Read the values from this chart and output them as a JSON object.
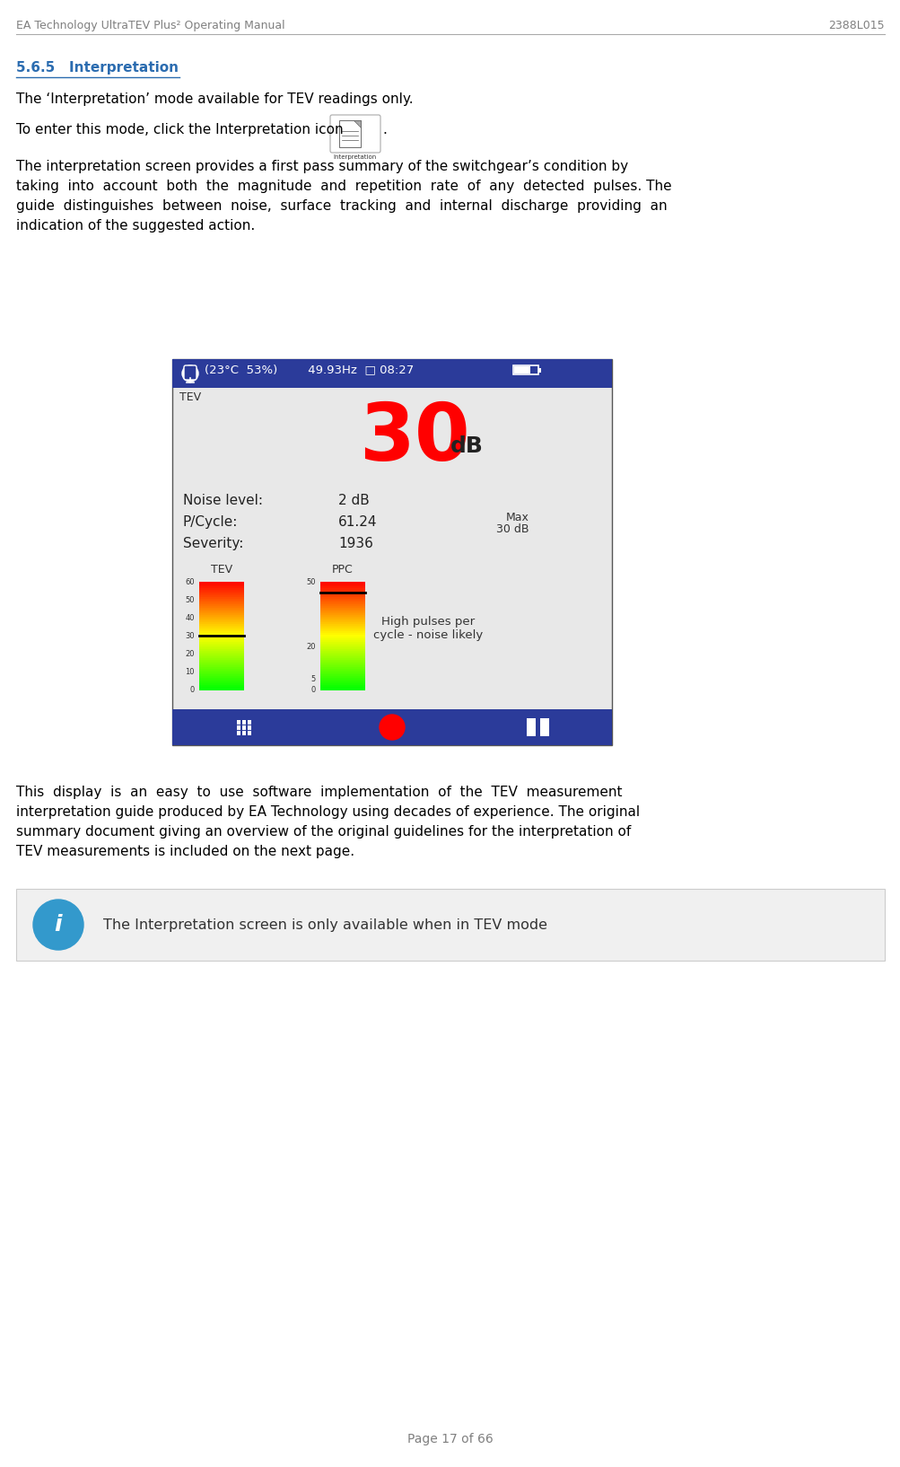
{
  "page_title_left": "EA Technology UltraTEV Plus² Operating Manual",
  "page_title_right": "2388L015",
  "section_heading": "5.6.5   Interpretation",
  "para1": "The ‘Interpretation’ mode available for TEV readings only.",
  "para2_prefix": "To enter this mode, click the Interpretation icon",
  "para3_lines": [
    "The interpretation screen provides a first pass summary of the switchgear’s condition by",
    "taking  into  account  both  the  magnitude  and  repetition  rate  of  any  detected  pulses. The",
    "guide  distinguishes  between  noise,  surface  tracking  and  internal  discharge  providing  an",
    "indication of the suggested action."
  ],
  "para4_lines": [
    "This  display  is  an  easy  to  use  software  implementation  of  the  TEV  measurement",
    "interpretation guide produced by EA Technology using decades of experience. The original",
    "summary document giving an overview of the original guidelines for the interpretation of",
    "TEV measurements is included on the next page."
  ],
  "info_box_text": "The Interpretation screen is only available when in TEV mode",
  "page_number": "Page 17 of 66",
  "screen_header_text": "(23°C  53%)        49.93Hz  □ 08:27",
  "screen_header_bg": "#2B3B9A",
  "screen_bg": "#E8E8E8",
  "screen_tev_label": "TEV",
  "screen_big_number": "30",
  "screen_db_label": "dB",
  "screen_big_number_color": "#FF0000",
  "screen_noise_label": "Noise level:",
  "screen_noise_val": "2 dB",
  "screen_pcycle_label": "P/Cycle:",
  "screen_pcycle_val": "61.24",
  "screen_severity_label": "Severity:",
  "screen_severity_val": "1936",
  "screen_max_label": "Max",
  "screen_max_val": "30 dB",
  "screen_tev_bar_label": "TEV",
  "screen_ppc_bar_label": "PPC",
  "screen_annotation": "High pulses per\ncycle - noise likely",
  "screen_footer_bg": "#2B3B9A",
  "heading_color": "#2B6CB0",
  "header_color": "#808080",
  "body_color": "#000000",
  "info_box_bg": "#F0F0F0",
  "info_icon_color": "#3399CC"
}
